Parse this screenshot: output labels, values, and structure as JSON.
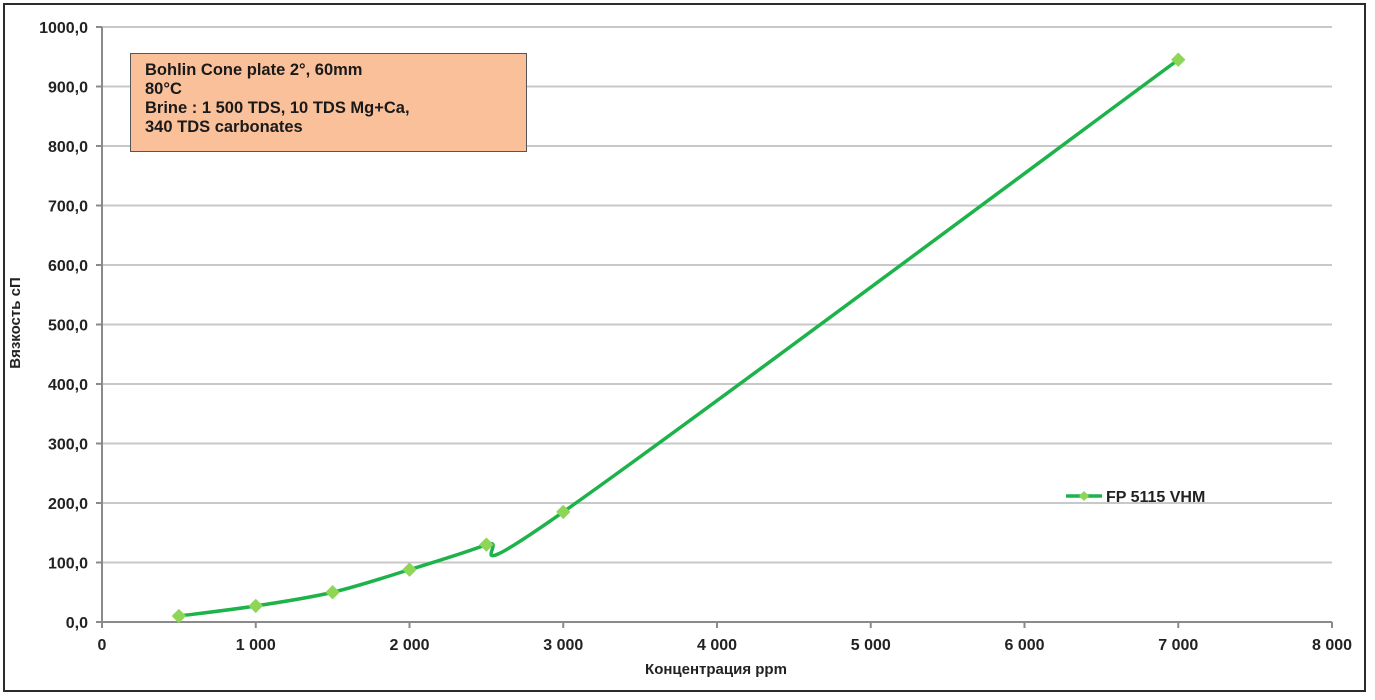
{
  "chart_data": {
    "type": "line",
    "title": "",
    "xlabel": "Концентрация ppm",
    "ylabel": "Вязкость сП",
    "xlim": [
      0,
      8000
    ],
    "ylim": [
      0,
      1000
    ],
    "x_ticks": [
      0,
      1000,
      2000,
      3000,
      4000,
      5000,
      6000,
      7000,
      8000
    ],
    "x_tick_labels": [
      "0",
      "1 000",
      "2 000",
      "3 000",
      "4 000",
      "5 000",
      "6 000",
      "7 000",
      "8 000"
    ],
    "y_ticks": [
      0,
      100,
      200,
      300,
      400,
      500,
      600,
      700,
      800,
      900,
      1000
    ],
    "y_tick_labels": [
      "0,0",
      "100,0",
      "200,0",
      "300,0",
      "400,0",
      "500,0",
      "600,0",
      "700,0",
      "800,0",
      "900,0",
      "1000,0"
    ],
    "grid": "horizontal",
    "legend_placement": "right",
    "series": [
      {
        "name": "FP 5115 VHM",
        "color": "#1db34a",
        "marker_color": "#8ed657",
        "x": [
          500,
          1000,
          1500,
          2000,
          2500,
          3000,
          7000
        ],
        "y": [
          10,
          27,
          50,
          88,
          130,
          185,
          945
        ]
      }
    ],
    "annotation": {
      "lines": [
        "Bohlin Cone plate 2°, 60mm",
        "80°C",
        "Brine : 1 500  TDS,  10 TDS Mg+Ca,",
        "340 TDS carbonates"
      ],
      "background": "#f9c09a"
    }
  }
}
